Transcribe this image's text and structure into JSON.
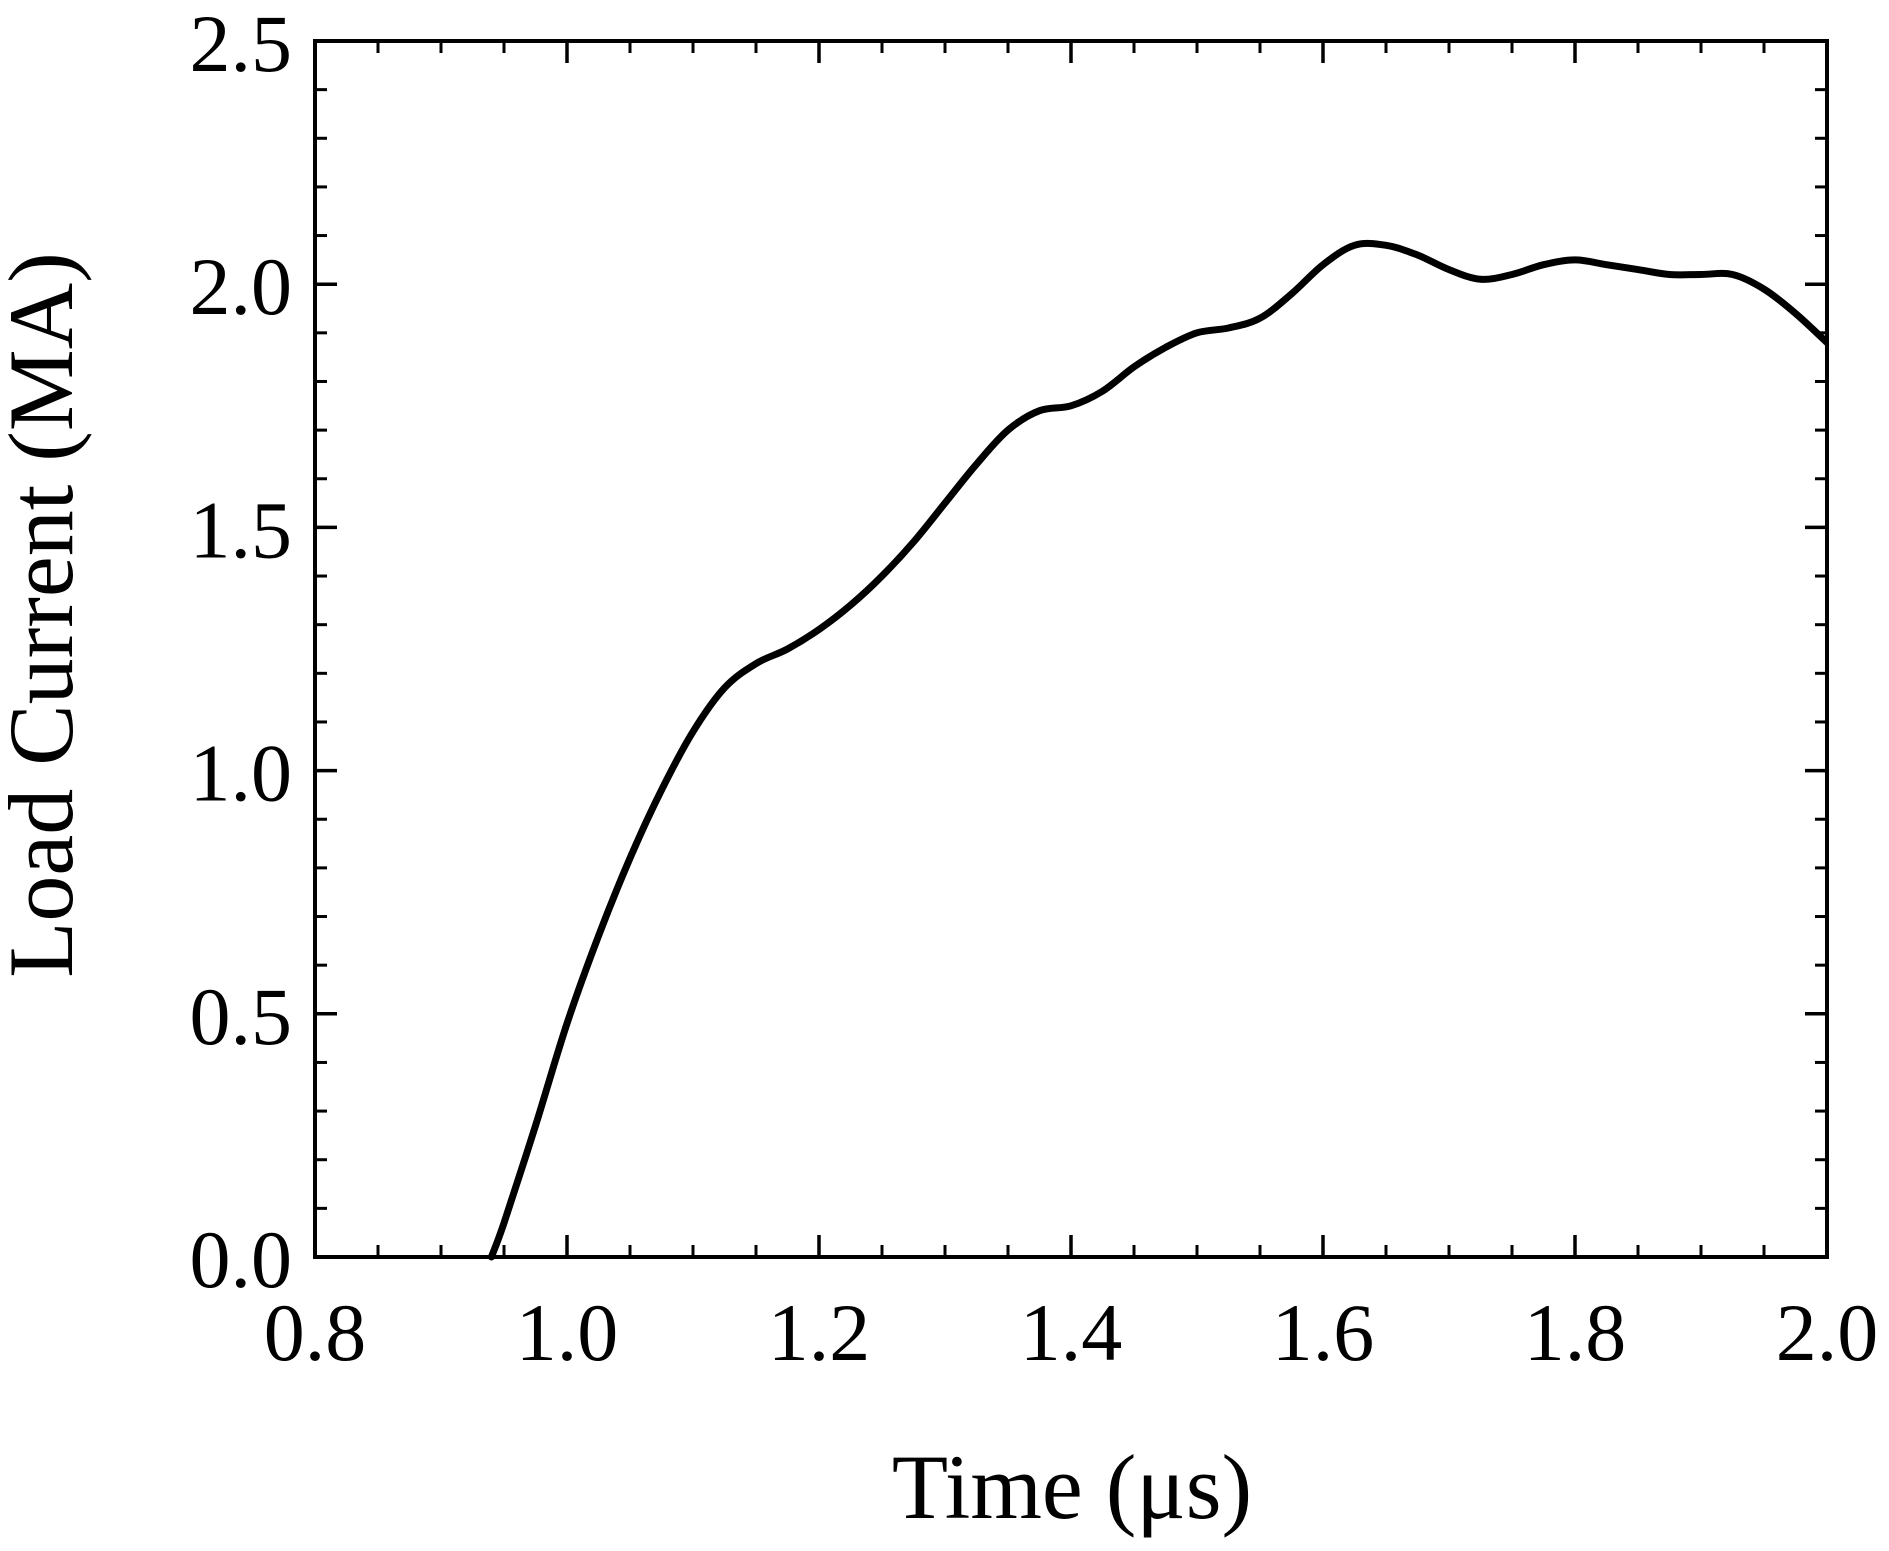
{
  "chart_data": {
    "type": "line",
    "title": "",
    "xlabel": "Time (μs)",
    "ylabel": "Load Current (MA)",
    "xlim": [
      0.8,
      2.0
    ],
    "ylim": [
      0.0,
      2.5
    ],
    "xticks": [
      0.8,
      1.0,
      1.2,
      1.4,
      1.6,
      1.8,
      2.0
    ],
    "xtick_labels": [
      "0.8",
      "1.0",
      "1.2",
      "1.4",
      "1.6",
      "1.8",
      "2.0"
    ],
    "yticks": [
      0.0,
      0.5,
      1.0,
      1.5,
      2.0,
      2.5
    ],
    "ytick_labels": [
      "0.0",
      "0.5",
      "1.0",
      "1.5",
      "2.0",
      "2.5"
    ],
    "x_minor_step": 0.05,
    "y_minor_step": 0.1,
    "grid": false,
    "line_color": "#000000",
    "series": [
      {
        "x": [
          0.94,
          0.95,
          0.975,
          1.0,
          1.025,
          1.05,
          1.075,
          1.1,
          1.125,
          1.15,
          1.175,
          1.2,
          1.225,
          1.25,
          1.275,
          1.3,
          1.325,
          1.35,
          1.375,
          1.4,
          1.425,
          1.45,
          1.475,
          1.5,
          1.525,
          1.55,
          1.575,
          1.6,
          1.625,
          1.65,
          1.675,
          1.7,
          1.725,
          1.75,
          1.775,
          1.8,
          1.825,
          1.85,
          1.875,
          1.9,
          1.925,
          1.95,
          1.975,
          2.0
        ],
        "y": [
          0.0,
          0.07,
          0.27,
          0.48,
          0.66,
          0.82,
          0.96,
          1.08,
          1.17,
          1.22,
          1.25,
          1.29,
          1.34,
          1.4,
          1.47,
          1.55,
          1.63,
          1.7,
          1.74,
          1.75,
          1.78,
          1.83,
          1.87,
          1.9,
          1.91,
          1.93,
          1.98,
          2.04,
          2.08,
          2.08,
          2.06,
          2.03,
          2.01,
          2.02,
          2.04,
          2.05,
          2.04,
          2.03,
          2.02,
          2.02,
          2.02,
          1.99,
          1.94,
          1.88
        ]
      }
    ]
  }
}
